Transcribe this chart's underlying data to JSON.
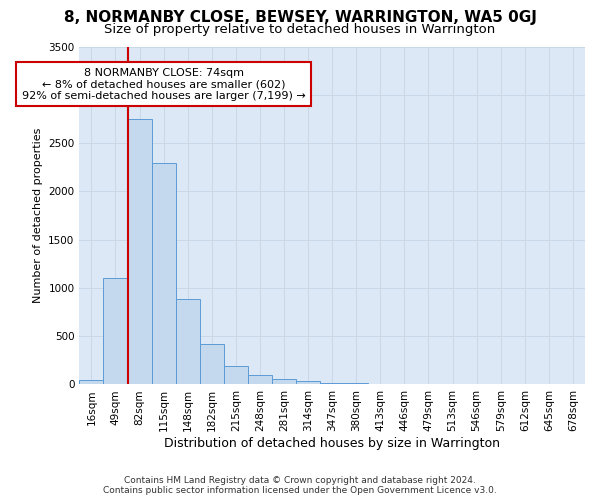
{
  "title": "8, NORMANBY CLOSE, BEWSEY, WARRINGTON, WA5 0GJ",
  "subtitle": "Size of property relative to detached houses in Warrington",
  "xlabel": "Distribution of detached houses by size in Warrington",
  "ylabel": "Number of detached properties",
  "categories": [
    "16sqm",
    "49sqm",
    "82sqm",
    "115sqm",
    "148sqm",
    "182sqm",
    "215sqm",
    "248sqm",
    "281sqm",
    "314sqm",
    "347sqm",
    "380sqm",
    "413sqm",
    "446sqm",
    "479sqm",
    "513sqm",
    "546sqm",
    "579sqm",
    "612sqm",
    "645sqm",
    "678sqm"
  ],
  "values": [
    50,
    1100,
    2750,
    2290,
    880,
    420,
    195,
    100,
    60,
    35,
    20,
    10,
    5,
    3,
    1,
    1,
    0,
    0,
    0,
    0,
    0
  ],
  "bar_color": "#c5d9ee",
  "bar_edge_color": "#5b9bd5",
  "grid_color": "#c8d8e8",
  "bg_color": "#dce8f5",
  "property_line_x": 1.5,
  "annotation_line1": "8 NORMANBY CLOSE: 74sqm",
  "annotation_line2": "← 8% of detached houses are smaller (602)",
  "annotation_line3": "92% of semi-detached houses are larger (7,199) →",
  "annotation_box_color": "#ffffff",
  "annotation_box_edge_color": "#cc0000",
  "property_line_color": "#cc0000",
  "footer_line1": "Contains HM Land Registry data © Crown copyright and database right 2024.",
  "footer_line2": "Contains public sector information licensed under the Open Government Licence v3.0.",
  "ylim": [
    0,
    3500
  ],
  "yticks": [
    0,
    500,
    1000,
    1500,
    2000,
    2500,
    3000,
    3500
  ],
  "title_fontsize": 11,
  "subtitle_fontsize": 9.5,
  "ylabel_fontsize": 8,
  "xlabel_fontsize": 9,
  "tick_fontsize": 7.5,
  "annotation_fontsize": 8,
  "footer_fontsize": 6.5
}
